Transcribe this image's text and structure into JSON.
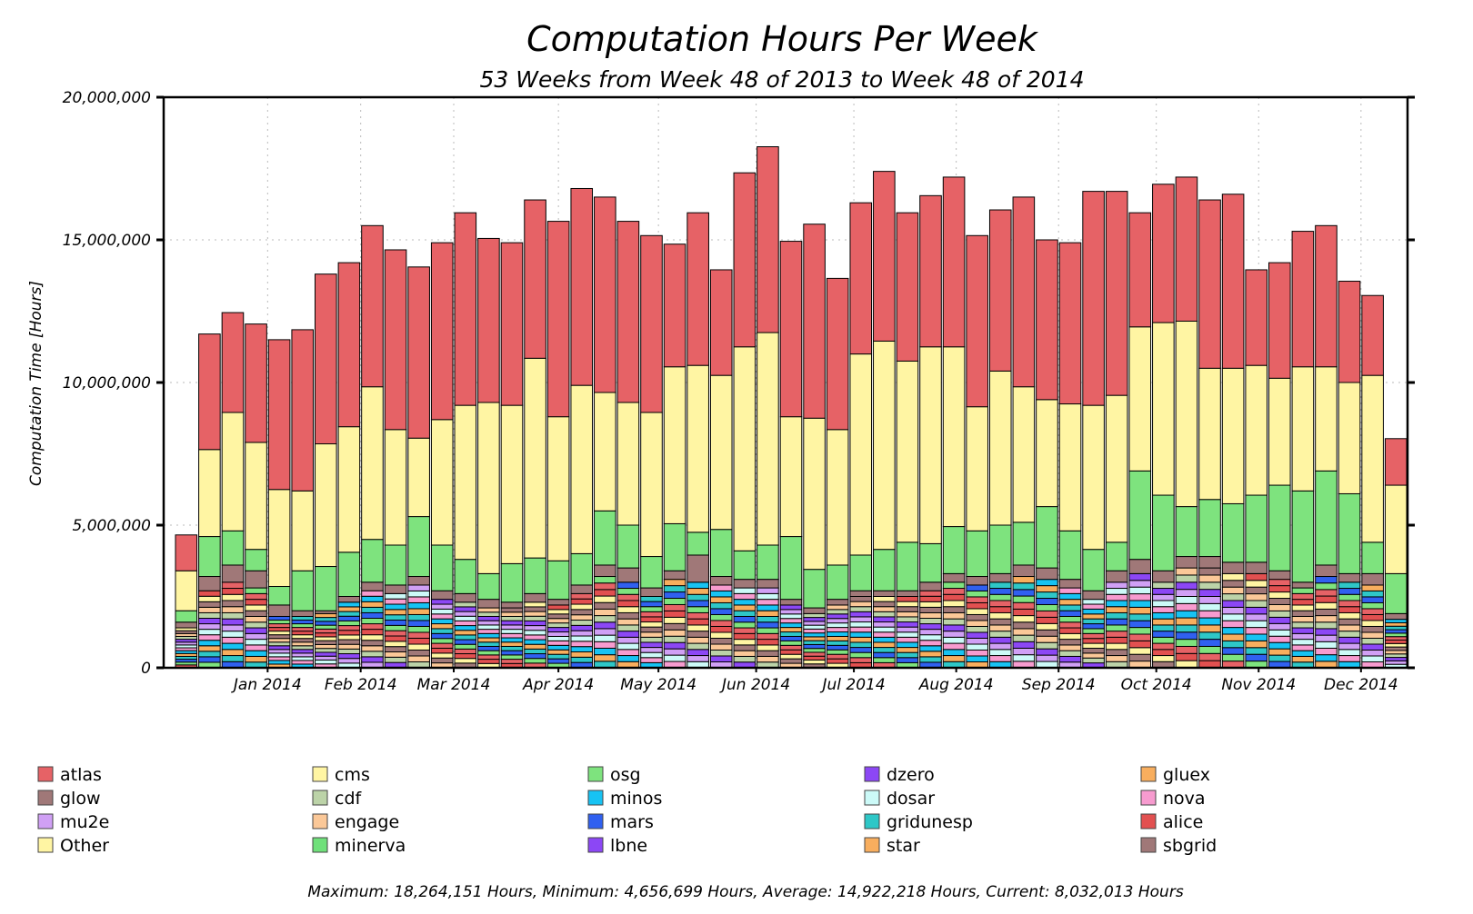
{
  "chart_data": {
    "type": "bar",
    "stacked": true,
    "title": "Computation Hours Per Week",
    "subtitle": "53 Weeks from Week 48 of 2013 to Week 48 of 2014",
    "ylabel": "Computation Time [Hours]",
    "ylim": [
      0,
      20000000
    ],
    "y_ticks": [
      0,
      5000000,
      10000000,
      15000000,
      20000000
    ],
    "y_tick_labels": [
      "0",
      "5,000,000",
      "10,000,000",
      "15,000,000",
      "20,000,000"
    ],
    "x_ticks": [
      {
        "label": "Jan 2014",
        "week": 4
      },
      {
        "label": "Feb 2014",
        "week": 8
      },
      {
        "label": "Mar 2014",
        "week": 12
      },
      {
        "label": "Apr 2014",
        "week": 16.5
      },
      {
        "label": "May 2014",
        "week": 20.8
      },
      {
        "label": "Jun 2014",
        "week": 25
      },
      {
        "label": "Jul 2014",
        "week": 29.2
      },
      {
        "label": "Aug 2014",
        "week": 33.6
      },
      {
        "label": "Sep 2014",
        "week": 38
      },
      {
        "label": "Oct 2014",
        "week": 42.2
      },
      {
        "label": "Nov 2014",
        "week": 46.6
      },
      {
        "label": "Dec 2014",
        "week": 51
      }
    ],
    "grid": true,
    "legend_position": "bottom",
    "bucket_count": 53,
    "legend": [
      {
        "name": "atlas",
        "color": "#e66266"
      },
      {
        "name": "cms",
        "color": "#fff5a3"
      },
      {
        "name": "osg",
        "color": "#7ee37e"
      },
      {
        "name": "dzero",
        "color": "#8c47f5"
      },
      {
        "name": "gluex",
        "color": "#f8ae5e"
      },
      {
        "name": "glow",
        "color": "#a07878"
      },
      {
        "name": "cdf",
        "color": "#bcd3a8"
      },
      {
        "name": "minos",
        "color": "#17c3f3"
      },
      {
        "name": "dosar",
        "color": "#ccfaf8"
      },
      {
        "name": "nova",
        "color": "#f79bcf"
      },
      {
        "name": "mu2e",
        "color": "#d0a0f5"
      },
      {
        "name": "engage",
        "color": "#fbc898"
      },
      {
        "name": "mars",
        "color": "#3060f0"
      },
      {
        "name": "gridunesp",
        "color": "#2ec7c7"
      },
      {
        "name": "alice",
        "color": "#e25050"
      },
      {
        "name": "Other",
        "color": "#fff5a3"
      },
      {
        "name": "minerva",
        "color": "#6fe07a"
      },
      {
        "name": "lbne",
        "color": "#8c47f5"
      },
      {
        "name": "star",
        "color": "#f8ae5e"
      },
      {
        "name": "sbgrid",
        "color": "#a07878"
      }
    ],
    "weeks": [
      {
        "total": 4656699,
        "cms": 3400000,
        "osg": 2000000,
        "dzero": 1600000,
        "small": 1400000
      },
      {
        "total": 11700000,
        "cms": 7650000,
        "osg": 4600000,
        "dzero": 3200000,
        "small": 2700000
      },
      {
        "total": 12450000,
        "cms": 8950000,
        "osg": 4800000,
        "dzero": 3600000,
        "small": 3000000
      },
      {
        "total": 12050000,
        "cms": 7900000,
        "osg": 4150000,
        "dzero": 3400000,
        "small": 2800000
      },
      {
        "total": 11500000,
        "cms": 6250000,
        "osg": 2850000,
        "dzero": 2200000,
        "small": 1800000
      },
      {
        "total": 11850000,
        "cms": 6200000,
        "osg": 3400000,
        "dzero": 2000000,
        "small": 1800000
      },
      {
        "total": 13800000,
        "cms": 7850000,
        "osg": 3550000,
        "dzero": 2000000,
        "small": 1900000
      },
      {
        "total": 14200000,
        "cms": 8450000,
        "osg": 4050000,
        "dzero": 2500000,
        "small": 2300000
      },
      {
        "total": 15500000,
        "cms": 9850000,
        "osg": 4500000,
        "dzero": 3000000,
        "small": 2700000
      },
      {
        "total": 14650000,
        "cms": 8350000,
        "osg": 4300000,
        "dzero": 2900000,
        "small": 2600000
      },
      {
        "total": 14050000,
        "cms": 8050000,
        "osg": 5300000,
        "dzero": 3200000,
        "small": 2900000
      },
      {
        "total": 14900000,
        "cms": 8700000,
        "osg": 4300000,
        "dzero": 2700000,
        "small": 2400000
      },
      {
        "total": 15950000,
        "cms": 9200000,
        "osg": 3800000,
        "dzero": 2600000,
        "small": 2300000
      },
      {
        "total": 15050000,
        "cms": 9300000,
        "osg": 3300000,
        "dzero": 2400000,
        "small": 2100000
      },
      {
        "total": 14900000,
        "cms": 9200000,
        "osg": 3650000,
        "dzero": 2300000,
        "small": 2100000
      },
      {
        "total": 16400000,
        "cms": 10850000,
        "osg": 3850000,
        "dzero": 2600000,
        "small": 2300000
      },
      {
        "total": 15650000,
        "cms": 8800000,
        "osg": 3750000,
        "dzero": 2400000,
        "small": 2200000
      },
      {
        "total": 16800000,
        "cms": 9900000,
        "osg": 4000000,
        "dzero": 2900000,
        "small": 2600000
      },
      {
        "total": 16500000,
        "cms": 9650000,
        "osg": 5500000,
        "dzero": 3600000,
        "small": 3200000
      },
      {
        "total": 15650000,
        "cms": 9300000,
        "osg": 5000000,
        "dzero": 3500000,
        "small": 3000000
      },
      {
        "total": 15150000,
        "cms": 8950000,
        "osg": 3900000,
        "dzero": 2800000,
        "small": 2500000
      },
      {
        "total": 14850000,
        "cms": 10550000,
        "osg": 5050000,
        "dzero": 3400000,
        "small": 3100000
      },
      {
        "total": 15950000,
        "cms": 10600000,
        "osg": 4750000,
        "dzero": 3950000,
        "small": 3000000
      },
      {
        "total": 13950000,
        "cms": 10250000,
        "osg": 4850000,
        "dzero": 3200000,
        "small": 2900000
      },
      {
        "total": 17350000,
        "cms": 11250000,
        "osg": 4100000,
        "dzero": 3100000,
        "small": 2800000
      },
      {
        "total": 18264151,
        "cms": 11750000,
        "osg": 4300000,
        "dzero": 3100000,
        "small": 2800000
      },
      {
        "total": 14950000,
        "cms": 8800000,
        "osg": 4600000,
        "dzero": 2400000,
        "small": 2200000
      },
      {
        "total": 15550000,
        "cms": 8750000,
        "osg": 3450000,
        "dzero": 2100000,
        "small": 1900000
      },
      {
        "total": 13650000,
        "cms": 8350000,
        "osg": 3600000,
        "dzero": 2400000,
        "small": 2200000
      },
      {
        "total": 16300000,
        "cms": 11000000,
        "osg": 3950000,
        "dzero": 2700000,
        "small": 2500000
      },
      {
        "total": 17400000,
        "cms": 11450000,
        "osg": 4150000,
        "dzero": 2700000,
        "small": 2500000
      },
      {
        "total": 15950000,
        "cms": 10750000,
        "osg": 4400000,
        "dzero": 2700000,
        "small": 2500000
      },
      {
        "total": 16550000,
        "cms": 11250000,
        "osg": 4350000,
        "dzero": 3000000,
        "small": 2700000
      },
      {
        "total": 17200000,
        "cms": 11250000,
        "osg": 4950000,
        "dzero": 3300000,
        "small": 3000000
      },
      {
        "total": 15150000,
        "cms": 9150000,
        "osg": 4800000,
        "dzero": 3200000,
        "small": 2900000
      },
      {
        "total": 16050000,
        "cms": 10400000,
        "osg": 5000000,
        "dzero": 3300000,
        "small": 3000000
      },
      {
        "total": 16500000,
        "cms": 9850000,
        "osg": 5100000,
        "dzero": 3600000,
        "small": 3200000
      },
      {
        "total": 15000000,
        "cms": 9400000,
        "osg": 5650000,
        "dzero": 3500000,
        "small": 3100000
      },
      {
        "total": 14900000,
        "cms": 9250000,
        "osg": 4800000,
        "dzero": 3100000,
        "small": 2800000
      },
      {
        "total": 16700000,
        "cms": 9200000,
        "osg": 4150000,
        "dzero": 2700000,
        "small": 2400000
      },
      {
        "total": 16700000,
        "cms": 9550000,
        "osg": 4400000,
        "dzero": 3400000,
        "small": 3000000
      },
      {
        "total": 15950000,
        "cms": 11950000,
        "osg": 6900000,
        "dzero": 3800000,
        "small": 3300000
      },
      {
        "total": 16950000,
        "cms": 12100000,
        "osg": 6050000,
        "dzero": 3400000,
        "small": 3000000
      },
      {
        "total": 17200000,
        "cms": 12150000,
        "osg": 5650000,
        "dzero": 3900000,
        "small": 3500000
      },
      {
        "total": 16400000,
        "cms": 10500000,
        "osg": 5900000,
        "dzero": 3900000,
        "small": 3500000
      },
      {
        "total": 16600000,
        "cms": 10500000,
        "osg": 5750000,
        "dzero": 3700000,
        "small": 3300000
      },
      {
        "total": 13950000,
        "cms": 10600000,
        "osg": 6050000,
        "dzero": 3700000,
        "small": 3300000
      },
      {
        "total": 14200000,
        "cms": 10150000,
        "osg": 6400000,
        "dzero": 3400000,
        "small": 3100000
      },
      {
        "total": 15300000,
        "cms": 10550000,
        "osg": 6200000,
        "dzero": 3000000,
        "small": 2800000
      },
      {
        "total": 15500000,
        "cms": 10550000,
        "osg": 6900000,
        "dzero": 3600000,
        "small": 3200000
      },
      {
        "total": 13550000,
        "cms": 10000000,
        "osg": 6100000,
        "dzero": 3300000,
        "small": 3000000
      },
      {
        "total": 13050000,
        "cms": 10250000,
        "osg": 4400000,
        "dzero": 3300000,
        "small": 2900000
      },
      {
        "total": 8032013,
        "cms": 6400000,
        "osg": 3300000,
        "dzero": 1900000,
        "small": 1700000
      }
    ]
  },
  "footer": {
    "maximum": "18,264,151",
    "minimum": "4,656,699",
    "average": "14,922,218",
    "current": "8,032,013",
    "text": "Maximum: 18,264,151 Hours, Minimum: 4,656,699 Hours, Average: 14,922,218 Hours, Current: 8,032,013 Hours"
  }
}
